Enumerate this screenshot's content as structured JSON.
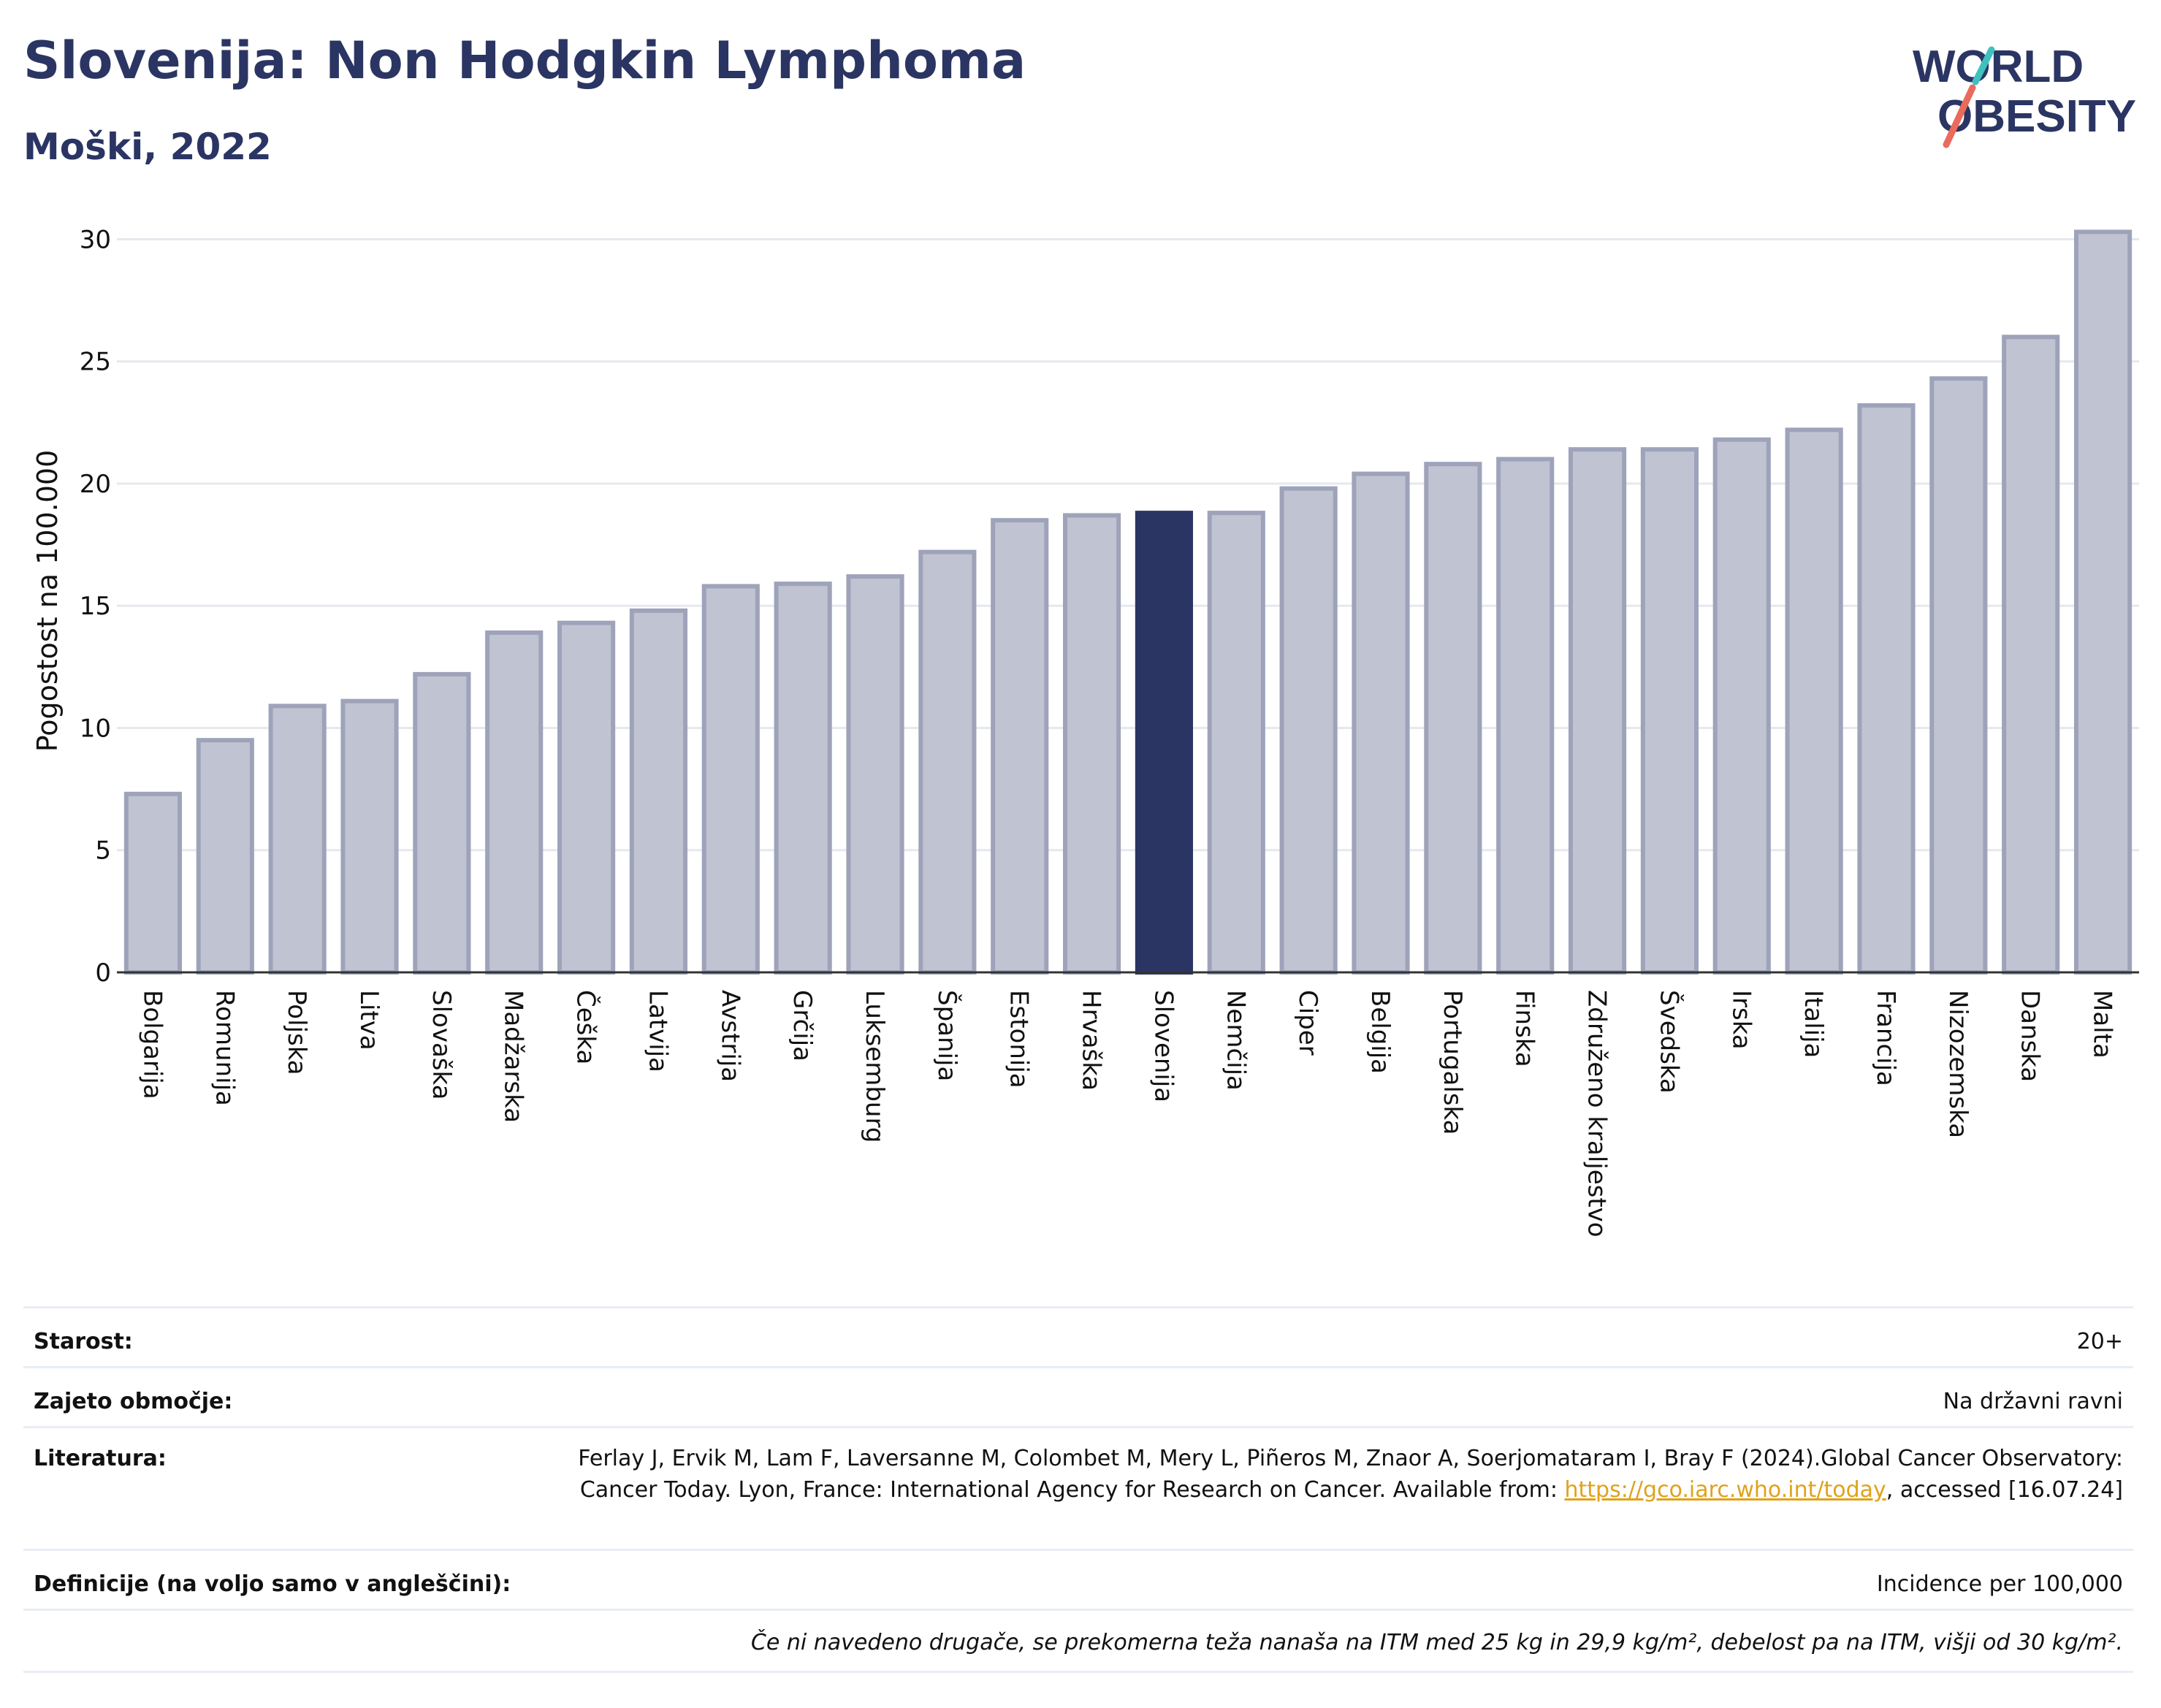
{
  "header": {
    "title": "Slovenija: Non Hodgkin Lymphoma",
    "subtitle": "Moški, 2022"
  },
  "logo": {
    "line1": "WORLD",
    "line2": "OBESITY"
  },
  "chart_data": {
    "type": "bar",
    "ylabel": "Pogostost na 100.000",
    "xlabel": "",
    "ylim": [
      0,
      31
    ],
    "yticks": [
      0,
      5,
      10,
      15,
      20,
      25,
      30
    ],
    "grid": true,
    "highlight": "Slovenija",
    "colors": {
      "bar": "#c0c3d1",
      "bar_edge": "#9ea3ba",
      "highlight": "#2b3563",
      "grid": "#e6e8ee"
    },
    "categories": [
      "Bolgarija",
      "Romunija",
      "Poljska",
      "Litva",
      "Slovaška",
      "Madžarska",
      "Češka",
      "Latvija",
      "Avstrija",
      "Grčija",
      "Luksemburg",
      "Španija",
      "Estonija",
      "Hrvaška",
      "Slovenija",
      "Nemčija",
      "Ciper",
      "Belgija",
      "Portugalska",
      "Finska",
      "Združeno kraljestvo",
      "Švedska",
      "Irska",
      "Italija",
      "Francija",
      "Nizozemska",
      "Danska",
      "Malta"
    ],
    "values": [
      7.3,
      9.5,
      10.9,
      11.1,
      12.2,
      13.9,
      14.3,
      14.8,
      15.8,
      15.9,
      16.2,
      17.2,
      18.5,
      18.7,
      18.8,
      18.8,
      19.8,
      20.4,
      20.8,
      21.0,
      21.4,
      21.4,
      21.8,
      22.2,
      23.2,
      24.3,
      26.0,
      30.3
    ]
  },
  "info": {
    "age_label": "Starost:",
    "age_value": "20+",
    "coverage_label": "Zajeto območje:",
    "coverage_value": "Na državni ravni",
    "lit_label": "Literatura:",
    "lit_text1": "Ferlay J, Ervik M, Lam F, Laversanne M, Colombet M, Mery L, Piñeros M, Znaor A, Soerjomataram I, Bray F (2024).Global Cancer Observatory: Cancer Today. Lyon, France: International Agency for Research on Cancer. Available from: ",
    "lit_link": "https://gco.iarc.who.int/today",
    "lit_text2": ", accessed [16.07.24]",
    "def_label": "Definicije (na voljo samo v angleščini):",
    "def_value": "Incidence per 100,000",
    "note": "Če ni navedeno drugače, se prekomerna teža nanaša na ITM med 25 kg in 29,9 kg/m², debelost pa na ITM, višji od 30 kg/m²."
  }
}
